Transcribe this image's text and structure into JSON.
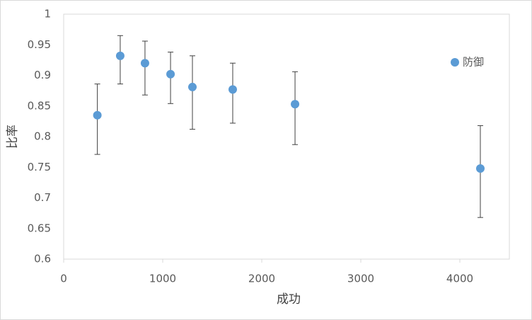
{
  "chart_data": {
    "type": "scatter",
    "x_label": "成功",
    "y_label": "比率",
    "series": [
      {
        "name": "防御",
        "color": "#5b9bd5",
        "x": [
          340,
          571,
          821,
          1079,
          1300,
          1707,
          2336,
          4207
        ],
        "values": [
          0.835,
          0.932,
          0.92,
          0.902,
          0.881,
          0.877,
          0.853,
          0.748
        ],
        "err_plus": [
          0.051,
          0.033,
          0.036,
          0.036,
          0.051,
          0.043,
          0.053,
          0.07
        ],
        "err_minus": [
          0.064,
          0.046,
          0.052,
          0.048,
          0.069,
          0.055,
          0.066,
          0.08
        ]
      }
    ],
    "xlim": [
      0,
      4500
    ],
    "xticks": [
      0,
      1000,
      2000,
      3000,
      4000
    ],
    "ylim": [
      0.6,
      1
    ],
    "yticks": [
      0.6,
      0.65,
      0.7,
      0.75,
      0.8,
      0.85,
      0.9,
      0.95,
      1
    ],
    "grid": false,
    "legend": "right"
  }
}
